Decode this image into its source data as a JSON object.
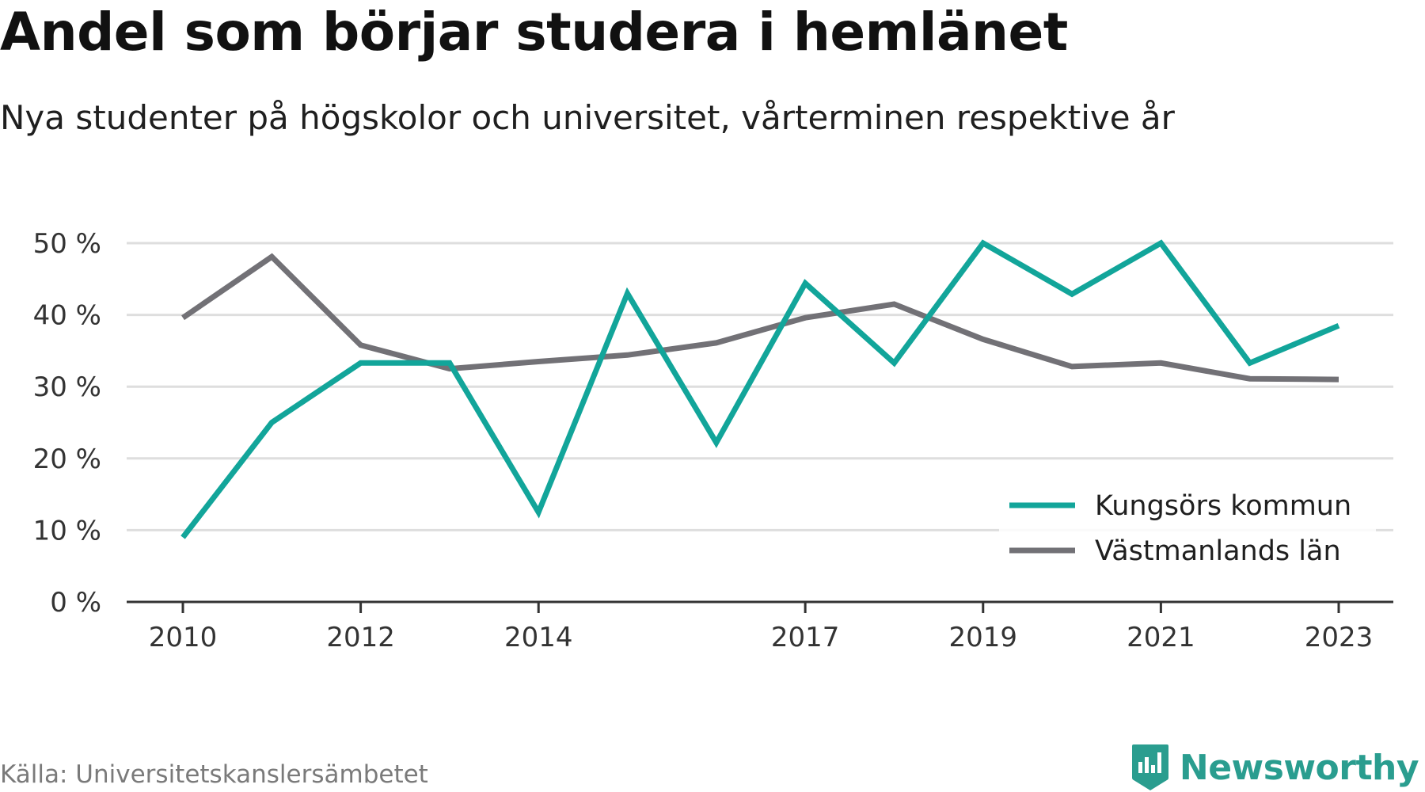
{
  "header": {
    "title": "Andel som börjar studera i hemlänet",
    "subtitle": "Nya studenter på högskolor och universitet, vårterminen respektive år"
  },
  "footer": {
    "source": "Källa: Universitetskanslersämbetet",
    "brand": "Newsworthy"
  },
  "colors": {
    "kungsor": "#12a59a",
    "vastmanland": "#727176",
    "grid": "#dedede",
    "axis": "#333333",
    "brand": "#2a9d8f"
  },
  "icons": {
    "brand_logo": "newsworthy-logo-icon"
  },
  "chart_data": {
    "type": "line",
    "x": [
      2010,
      2011,
      2012,
      2013,
      2014,
      2015,
      2016,
      2017,
      2018,
      2019,
      2020,
      2021,
      2022,
      2023
    ],
    "series": [
      {
        "name": "Kungsörs kommun",
        "color": "#12a59a",
        "values": [
          9,
          25,
          33.3,
          33.3,
          12.5,
          43,
          22.2,
          44.4,
          33.3,
          50,
          42.9,
          50,
          33.3,
          38.5
        ]
      },
      {
        "name": "Västmanlands län",
        "color": "#727176",
        "values": [
          39.6,
          48.1,
          35.8,
          32.5,
          33.5,
          34.4,
          36.1,
          39.6,
          41.5,
          36.6,
          32.8,
          33.3,
          31.1,
          31
        ]
      }
    ],
    "ylim": [
      0,
      50
    ],
    "yticks": [
      0,
      10,
      20,
      30,
      40,
      50
    ],
    "ytick_labels": [
      "0 %",
      "10 %",
      "20 %",
      "30 %",
      "40 %",
      "50 %"
    ],
    "xticks": [
      2010,
      2012,
      2014,
      2017,
      2019,
      2021,
      2023
    ],
    "xtick_labels": [
      "2010",
      "2012",
      "2014",
      "2017",
      "2019",
      "2021",
      "2023"
    ],
    "grid": true,
    "legend_position": "bottom-right"
  }
}
